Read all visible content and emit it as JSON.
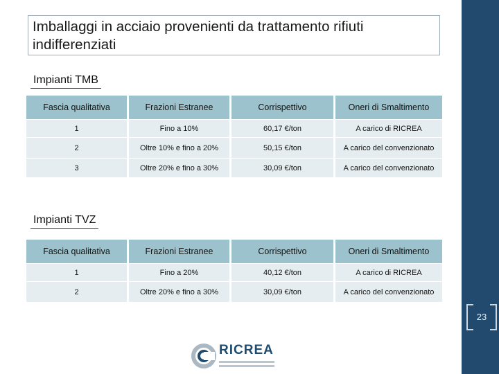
{
  "title": {
    "line1": "Imballaggi in acciaio provenienti da trattamento rifiuti",
    "line2": "indifferenziati"
  },
  "sections": [
    {
      "label": "Impianti TMB",
      "headers": [
        "Fascia qualitativa",
        "Frazioni Estranee",
        "Corrispettivo",
        "Oneri di Smaltimento"
      ],
      "rows": [
        [
          "1",
          "Fino a 10%",
          "60,17 €/ton",
          "A carico di RICREA"
        ],
        [
          "2",
          "Oltre 10% e fino a 20%",
          "50,15 €/ton",
          "A carico del convenzionato"
        ],
        [
          "3",
          "Oltre 20% e fino a 30%",
          "30,09 €/ton",
          "A carico del convenzionato"
        ]
      ]
    },
    {
      "label": "Impianti TVZ",
      "headers": [
        "Fascia qualitativa",
        "Frazioni Estranee",
        "Corrispettivo",
        "Oneri di Smaltimento"
      ],
      "rows": [
        [
          "1",
          "Fino a 20%",
          "40,12 €/ton",
          "A carico di RICREA"
        ],
        [
          "2",
          "Oltre 20% e fino a 30%",
          "30,09 €/ton",
          "A carico del convenzionato"
        ]
      ]
    }
  ],
  "page_number": "23",
  "logo": {
    "name": "RICREA"
  },
  "colors": {
    "sidebar": "#214a6e",
    "header": "#9cc3cd",
    "row": "#e6edf0"
  }
}
